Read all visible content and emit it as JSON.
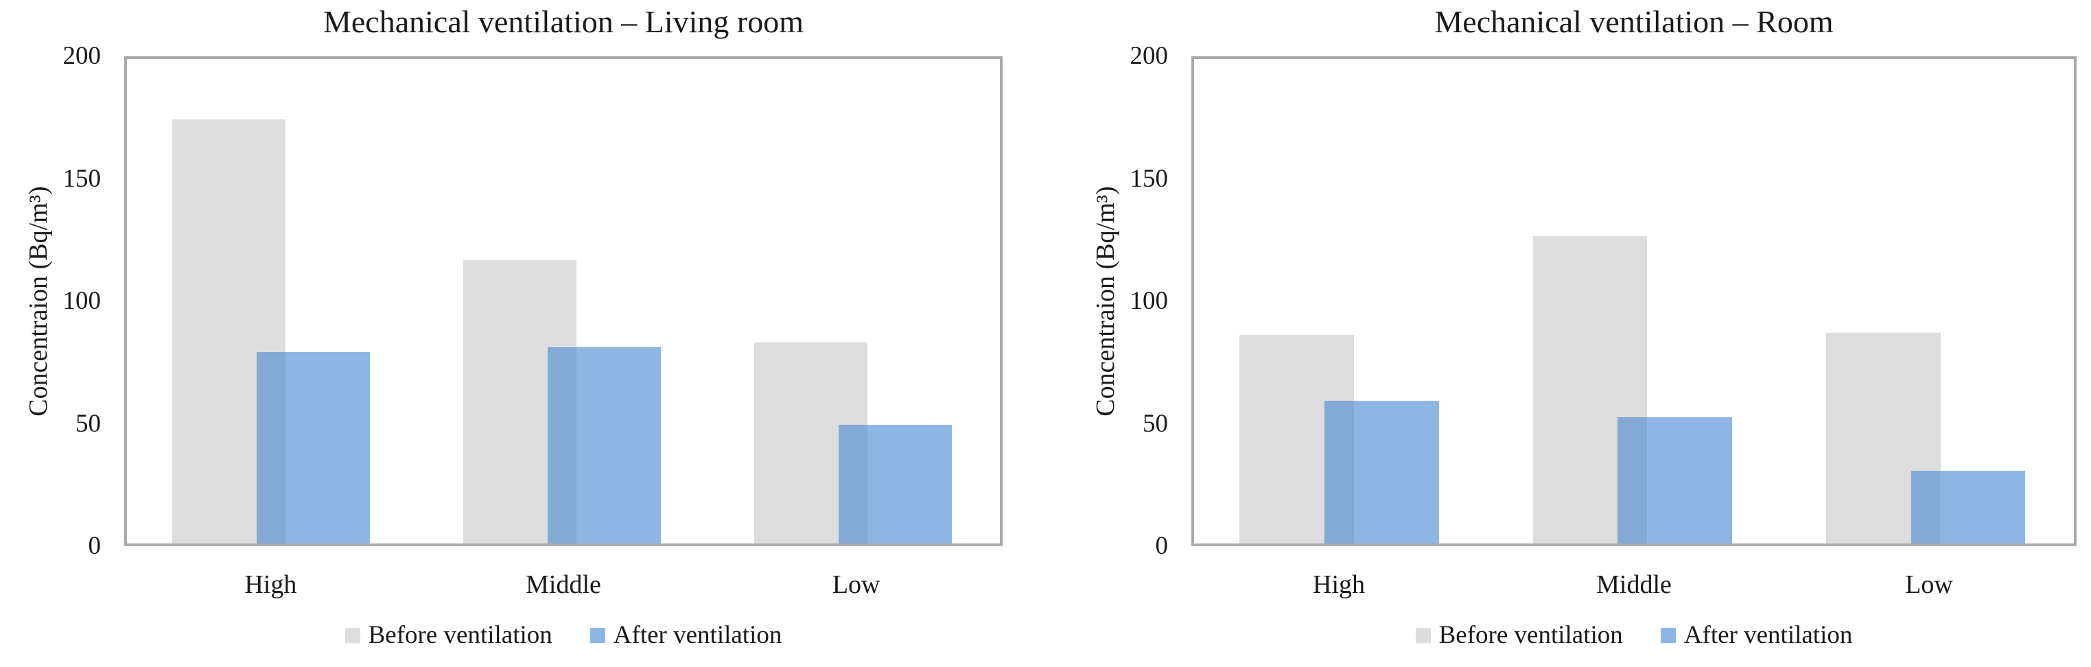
{
  "figure": {
    "background": "#ffffff",
    "axis_frame_color": "#a9a9a9",
    "text_color": "#1a1a1a",
    "before_color": "#dddddd",
    "after_color": "#8db7e2"
  },
  "chart_data": [
    {
      "type": "bar",
      "title": "Mechanical ventilation – Living room",
      "ylabel": "Concentraion (Bq/m³)",
      "xlabel": "",
      "categories": [
        "High",
        "Middle",
        "Low"
      ],
      "series": [
        {
          "name": "Before ventilation",
          "color": "#dddddd",
          "values": [
            175,
            117,
            83
          ]
        },
        {
          "name": "After ventilation",
          "color": "#8db7e2",
          "values": [
            79,
            81,
            49
          ]
        }
      ],
      "ylim": [
        0,
        200
      ],
      "yticks": [
        0,
        50,
        100,
        150,
        200
      ],
      "grid": false,
      "legend_position": "bottom"
    },
    {
      "type": "bar",
      "title": "Mechanical ventilation – Room",
      "ylabel": "Concentraion (Bq/m³)",
      "xlabel": "",
      "categories": [
        "High",
        "Middle",
        "Low"
      ],
      "series": [
        {
          "name": "Before ventilation",
          "color": "#dddddd",
          "values": [
            86,
            127,
            87
          ]
        },
        {
          "name": "After ventilation",
          "color": "#8db7e2",
          "values": [
            59,
            52,
            30
          ]
        }
      ],
      "ylim": [
        0,
        200
      ],
      "yticks": [
        0,
        50,
        100,
        150,
        200
      ],
      "grid": false,
      "legend_position": "bottom"
    }
  ]
}
